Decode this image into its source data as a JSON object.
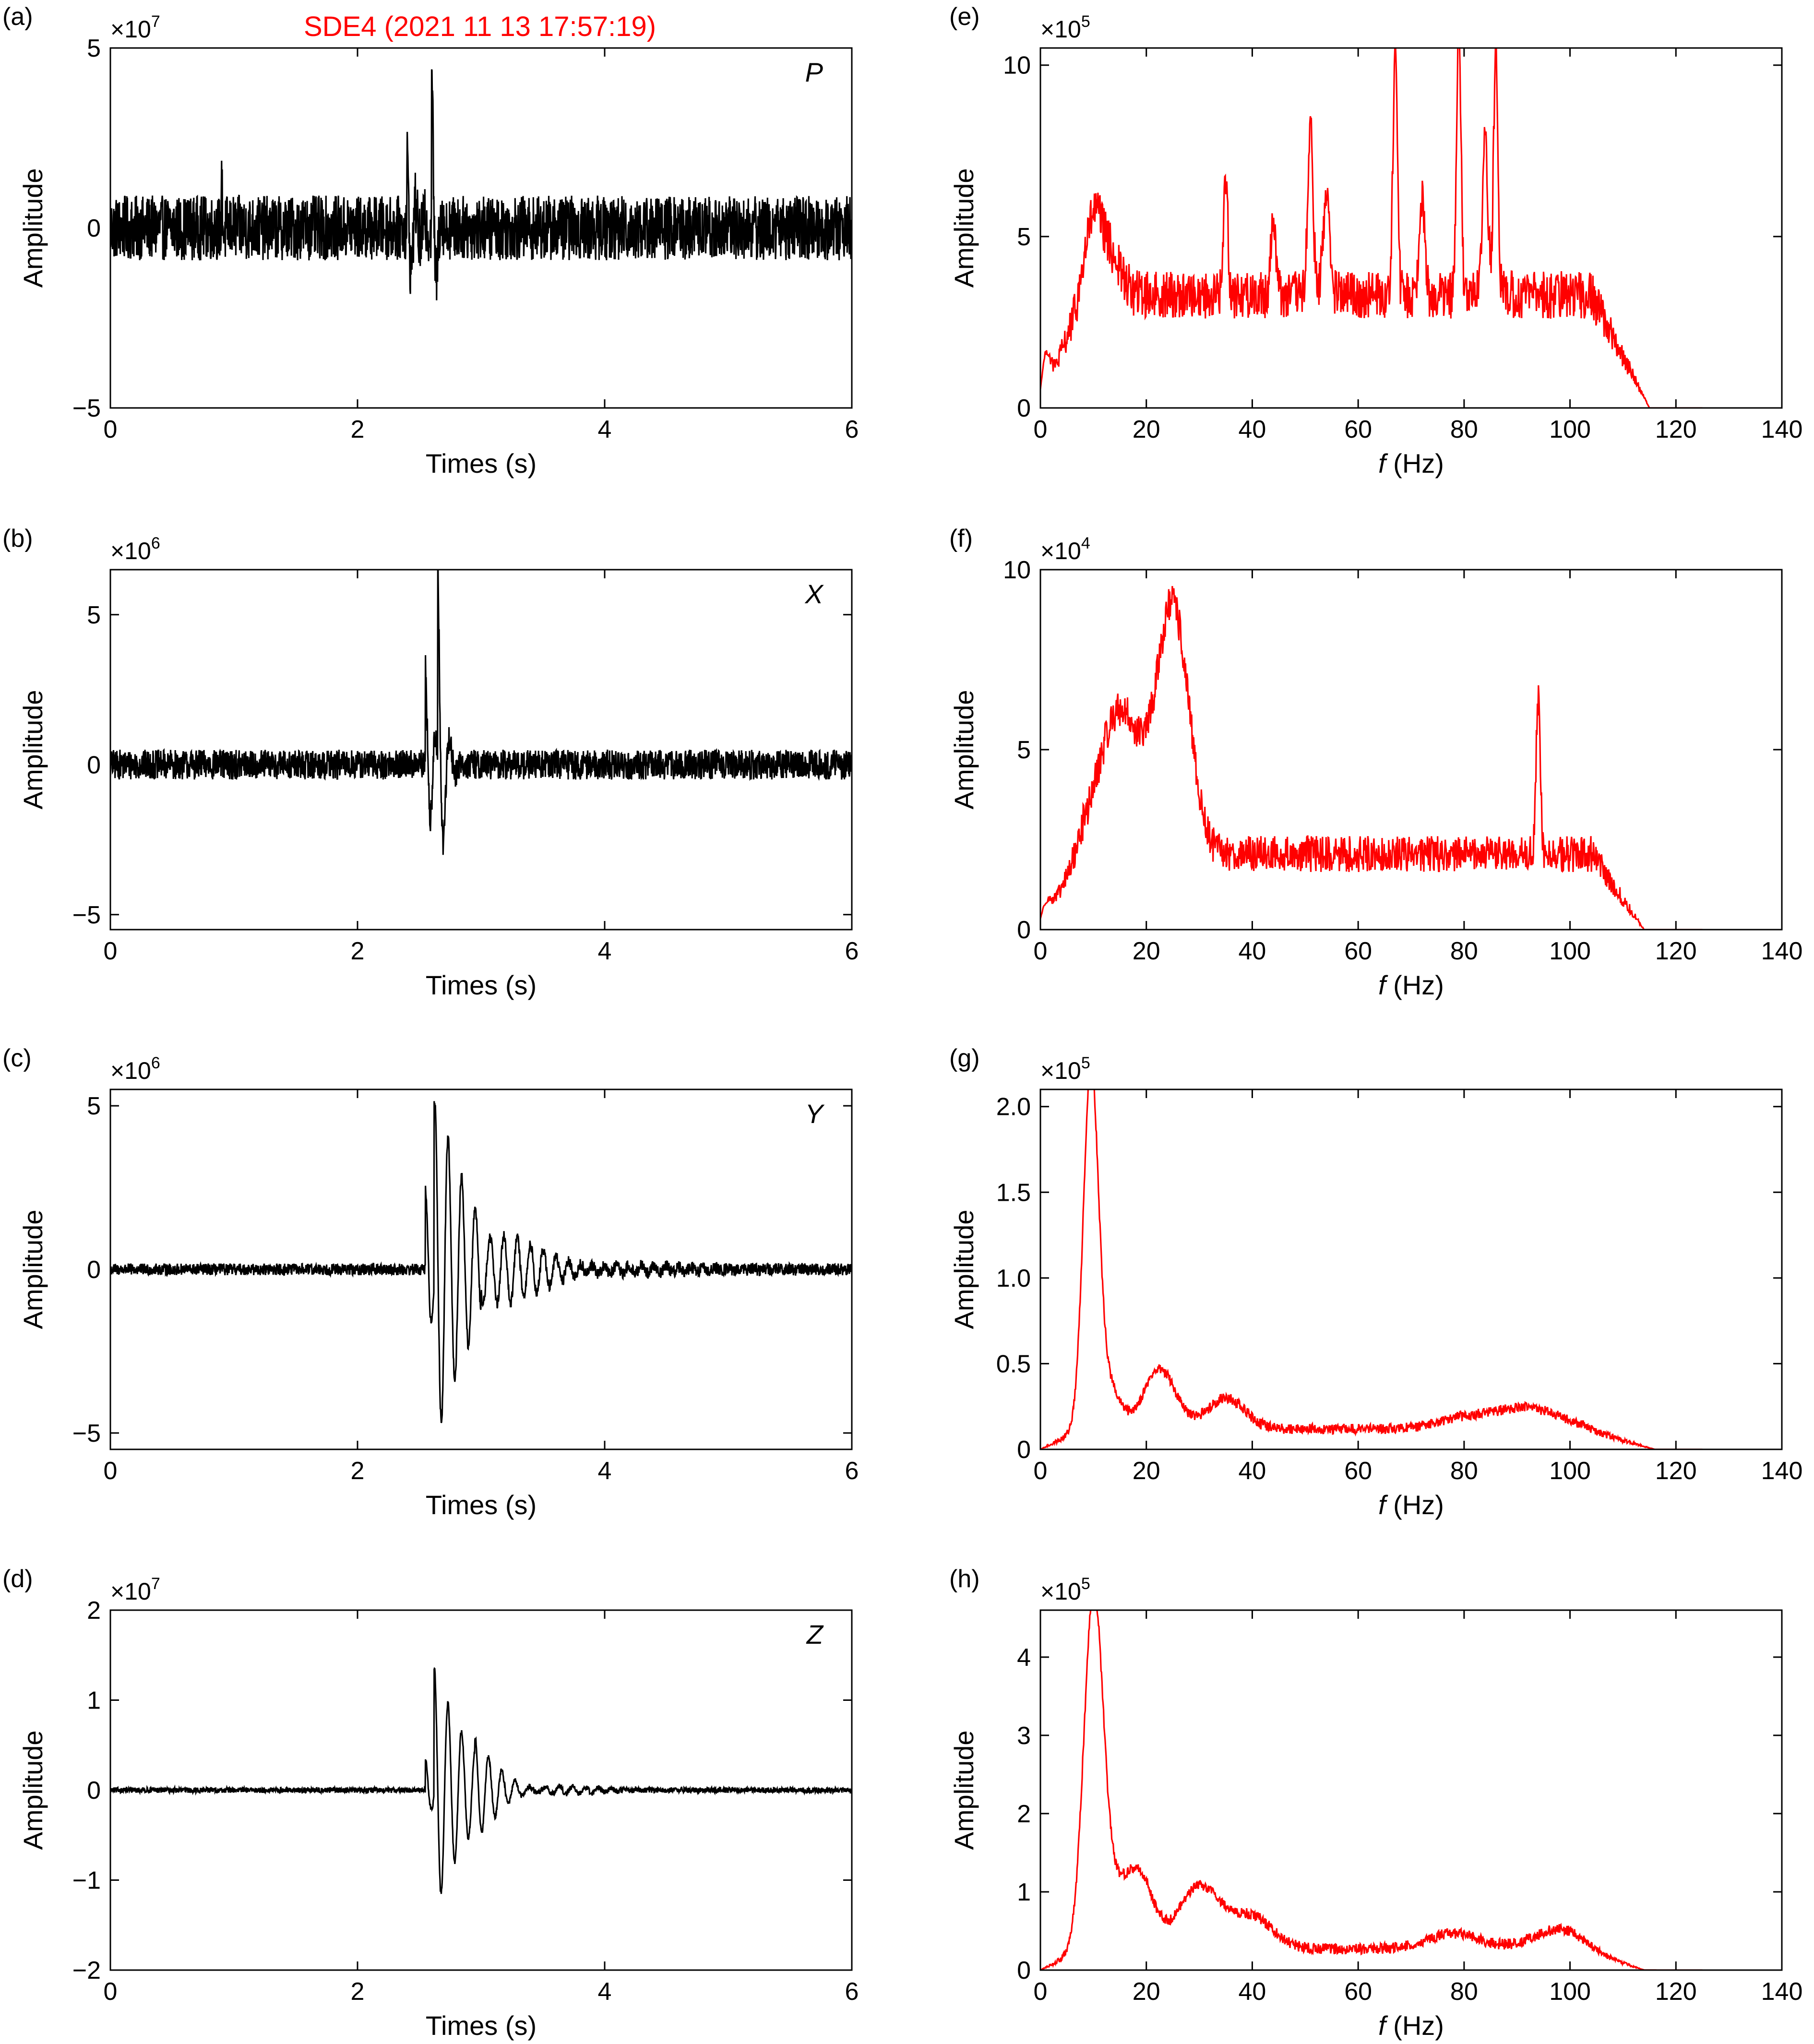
{
  "event_title": "SDE4 (2021 11 13 17:57:19)",
  "colors": {
    "waveform": "#000000",
    "spectrum": "#ff0000",
    "event_title": "#ff0000",
    "axes": "#000000"
  },
  "chart_data": [
    {
      "id": "a",
      "panel_label": "(a)",
      "type": "line",
      "kind": "waveform",
      "component": "P",
      "xlabel": "Times (s)",
      "ylabel": "Amplitude",
      "multiplier": "×10",
      "multiplier_exp": "7",
      "xlim": [
        0,
        6
      ],
      "ylim": [
        -5,
        5
      ],
      "xticks": [
        0,
        2,
        4,
        6
      ],
      "yticks": [
        -5,
        0,
        5
      ],
      "ytick_labels": [
        "−5",
        "0",
        "5"
      ],
      "series": [
        {
          "noise": 0.9,
          "events": [
            {
              "t": 2.4,
              "amp": 2.1,
              "f": 14,
              "decay": 0.06
            },
            {
              "t": 2.6,
              "amp": 5.0,
              "f": 12,
              "decay": 0.03
            },
            {
              "t": 0.9,
              "amp": 1.9,
              "f": 20,
              "decay": 0.01
            }
          ]
        }
      ]
    },
    {
      "id": "b",
      "panel_label": "(b)",
      "type": "line",
      "kind": "waveform",
      "component": "X",
      "xlabel": "Times (s)",
      "ylabel": "Amplitude",
      "multiplier": "×10",
      "multiplier_exp": "6",
      "xlim": [
        0,
        6
      ],
      "ylim": [
        -5.5,
        6.5
      ],
      "xticks": [
        0,
        2,
        4,
        6
      ],
      "yticks": [
        -5,
        0,
        5
      ],
      "ytick_labels": [
        "−5",
        "0",
        "5"
      ],
      "series": [
        {
          "noise": 0.5,
          "events": [
            {
              "t": 2.55,
              "amp": 3.2,
              "f": 12,
              "decay": 0.07
            },
            {
              "t": 2.65,
              "amp": 6.5,
              "f": 10,
              "decay": 0.05
            }
          ]
        }
      ]
    },
    {
      "id": "c",
      "panel_label": "(c)",
      "type": "line",
      "kind": "waveform",
      "component": "Y",
      "xlabel": "Times (s)",
      "ylabel": "Amplitude",
      "multiplier": "×10",
      "multiplier_exp": "6",
      "xlim": [
        0,
        6
      ],
      "ylim": [
        -5.5,
        5.5
      ],
      "xticks": [
        0,
        2,
        4,
        6
      ],
      "yticks": [
        -5,
        0,
        5
      ],
      "ytick_labels": [
        "−5",
        "0",
        "5"
      ],
      "series": [
        {
          "noise": 0.18,
          "events": [
            {
              "t": 2.55,
              "amp": 2.5,
              "f": 10,
              "decay": 0.12
            },
            {
              "t": 2.62,
              "amp": 5.5,
              "f": 9,
              "decay": 0.3
            },
            {
              "t": 3.0,
              "amp": 0.7,
              "f": 10,
              "decay": 0.7
            }
          ]
        }
      ]
    },
    {
      "id": "d",
      "panel_label": "(d)",
      "type": "line",
      "kind": "waveform",
      "component": "Z",
      "xlabel": "Times (s)",
      "ylabel": "Amplitude",
      "multiplier": "×10",
      "multiplier_exp": "7",
      "xlim": [
        0,
        6
      ],
      "ylim": [
        -2,
        2
      ],
      "xticks": [
        0,
        2,
        4,
        6
      ],
      "yticks": [
        -2,
        -1,
        0,
        1,
        2
      ],
      "ytick_labels": [
        "−2",
        "−1",
        "0",
        "1",
        "2"
      ],
      "series": [
        {
          "noise": 0.03,
          "events": [
            {
              "t": 2.55,
              "amp": 0.35,
              "f": 10,
              "decay": 0.1
            },
            {
              "t": 2.62,
              "amp": 1.4,
              "f": 9,
              "decay": 0.28
            },
            {
              "t": 2.95,
              "amp": 0.15,
              "f": 10,
              "decay": 0.4
            }
          ]
        }
      ]
    },
    {
      "id": "e",
      "panel_label": "(e)",
      "type": "line",
      "kind": "spectrum",
      "xlabel": "f (Hz)",
      "xlabel_italic": "f",
      "xlabel_rest": " (Hz)",
      "ylabel": "Amplitude",
      "multiplier": "×10",
      "multiplier_exp": "5",
      "xlim": [
        0,
        140
      ],
      "ylim": [
        0,
        10.5
      ],
      "fmax": 125,
      "xticks": [
        0,
        20,
        40,
        60,
        80,
        100,
        120,
        140
      ],
      "yticks": [
        0,
        5,
        10
      ],
      "ytick_labels": [
        "0",
        "5",
        "10"
      ],
      "series": [
        {
          "baseline": 2.6,
          "noise": 1.4,
          "rolloff": [
            104,
            115
          ],
          "peaks": [
            {
              "f": 1,
              "a": 1.2,
              "w": 0.8
            },
            {
              "f": 10,
              "a": 2.0,
              "w": 1.5
            },
            {
              "f": 13,
              "a": 1.2,
              "w": 2
            },
            {
              "f": 51,
              "a": 4.8,
              "w": 0.5
            },
            {
              "f": 54,
              "a": 3.0,
              "w": 0.6
            },
            {
              "f": 67,
              "a": 7.8,
              "w": 0.4
            },
            {
              "f": 79,
              "a": 7.9,
              "w": 0.4
            },
            {
              "f": 86,
              "a": 7.6,
              "w": 0.4
            },
            {
              "f": 84,
              "a": 4.5,
              "w": 0.5
            },
            {
              "f": 72,
              "a": 3.0,
              "w": 0.5
            },
            {
              "f": 35,
              "a": 3.5,
              "w": 0.4
            },
            {
              "f": 44,
              "a": 2.2,
              "w": 0.5
            }
          ]
        }
      ]
    },
    {
      "id": "f",
      "panel_label": "(f)",
      "type": "line",
      "kind": "spectrum",
      "xlabel": "f (Hz)",
      "xlabel_italic": "f",
      "xlabel_rest": " (Hz)",
      "ylabel": "Amplitude",
      "multiplier": "×10",
      "multiplier_exp": "4",
      "xlim": [
        0,
        140
      ],
      "ylim": [
        0,
        10
      ],
      "fmax": 125,
      "xticks": [
        0,
        20,
        40,
        60,
        80,
        100,
        120,
        140
      ],
      "yticks": [
        0,
        5,
        10
      ],
      "ytick_labels": [
        "0",
        "5",
        "10"
      ],
      "series": [
        {
          "baseline": 1.6,
          "noise": 1.0,
          "rolloff": [
            104,
            114
          ],
          "peaks": [
            {
              "f": 15,
              "a": 4.0,
              "w": 4
            },
            {
              "f": 25,
              "a": 6.8,
              "w": 3
            },
            {
              "f": 94,
              "a": 4.3,
              "w": 0.4
            },
            {
              "f": 1,
              "a": 0.5,
              "w": 1
            }
          ]
        }
      ]
    },
    {
      "id": "g",
      "panel_label": "(g)",
      "type": "line",
      "kind": "spectrum",
      "xlabel": "f (Hz)",
      "xlabel_italic": "f",
      "xlabel_rest": " (Hz)",
      "ylabel": "Amplitude",
      "multiplier": "×10",
      "multiplier_exp": "5",
      "xlim": [
        0,
        140
      ],
      "ylim": [
        0,
        2.1
      ],
      "fmax": 125,
      "xticks": [
        0,
        20,
        40,
        60,
        80,
        100,
        120,
        140
      ],
      "yticks": [
        0,
        0.5,
        1.0,
        1.5,
        2.0
      ],
      "ytick_labels": [
        "0",
        "0.5",
        "1.0",
        "1.5",
        "2.0"
      ],
      "series": [
        {
          "baseline": 0.09,
          "noise": 0.06,
          "rolloff": [
            102,
            116
          ],
          "peaks": [
            {
              "f": 9.5,
              "a": 1.95,
              "w": 1.4
            },
            {
              "f": 12,
              "a": 0.3,
              "w": 2.5
            },
            {
              "f": 22.5,
              "a": 0.35,
              "w": 3
            },
            {
              "f": 35,
              "a": 0.18,
              "w": 3.5
            },
            {
              "f": 92,
              "a": 0.12,
              "w": 6
            },
            {
              "f": 80,
              "a": 0.06,
              "w": 5
            }
          ]
        }
      ]
    },
    {
      "id": "h",
      "panel_label": "(h)",
      "type": "line",
      "kind": "spectrum",
      "xlabel": "f (Hz)",
      "xlabel_italic": "f",
      "xlabel_rest": " (Hz)",
      "ylabel": "Amplitude",
      "multiplier": "×10",
      "multiplier_exp": "5",
      "xlim": [
        0,
        140
      ],
      "ylim": [
        0,
        4.6
      ],
      "fmax": 125,
      "xticks": [
        0,
        20,
        40,
        60,
        80,
        100,
        120,
        140
      ],
      "yticks": [
        0,
        1,
        2,
        3,
        4
      ],
      "ytick_labels": [
        "0",
        "1",
        "2",
        "3",
        "4"
      ],
      "series": [
        {
          "baseline": 0.2,
          "noise": 0.14,
          "rolloff": [
            100,
            114
          ],
          "peaks": [
            {
              "f": 10,
              "a": 4.3,
              "w": 1.8
            },
            {
              "f": 14,
              "a": 0.7,
              "w": 3
            },
            {
              "f": 19,
              "a": 0.8,
              "w": 2.5
            },
            {
              "f": 30,
              "a": 0.8,
              "w": 4
            },
            {
              "f": 40,
              "a": 0.4,
              "w": 4
            },
            {
              "f": 78,
              "a": 0.2,
              "w": 5
            },
            {
              "f": 98,
              "a": 0.25,
              "w": 5
            }
          ]
        }
      ]
    }
  ]
}
